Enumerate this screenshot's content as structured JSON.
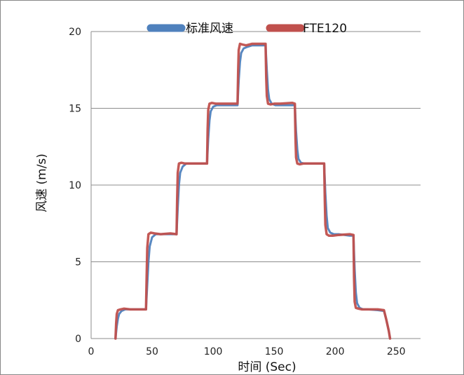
{
  "chart_data": {
    "type": "line",
    "xlabel": "时间 (Sec)",
    "ylabel": "风速 (m/s)",
    "xlim": [
      0,
      270
    ],
    "ylim": [
      0,
      20
    ],
    "xticks": [
      0,
      50,
      100,
      150,
      200,
      250
    ],
    "yticks": [
      0,
      5,
      10,
      15,
      20
    ],
    "grid": "horizontal",
    "legend_position": "top",
    "series": [
      {
        "name": "标准风速",
        "color": "#4F81BD",
        "x": [
          20,
          21,
          22,
          23,
          25,
          28,
          32,
          40,
          45,
          46,
          47,
          48,
          50,
          53,
          57,
          65,
          70,
          71,
          72,
          73,
          75,
          78,
          82,
          90,
          95,
          96,
          97,
          98,
          100,
          103,
          107,
          115,
          120,
          121,
          122,
          123,
          125,
          128,
          132,
          140,
          143,
          144,
          145,
          146,
          148,
          151,
          155,
          165,
          167,
          168,
          169,
          170,
          172,
          175,
          179,
          189,
          191,
          192,
          193,
          194,
          196,
          199,
          203,
          212,
          215,
          216,
          217,
          218,
          220,
          223,
          227,
          235,
          240,
          242,
          244,
          245
        ],
        "y": [
          0,
          0.8,
          1.3,
          1.6,
          1.8,
          1.9,
          1.9,
          1.9,
          1.9,
          3.5,
          5.0,
          6.0,
          6.6,
          6.8,
          6.8,
          6.8,
          6.8,
          8.5,
          10.0,
          10.8,
          11.2,
          11.4,
          11.4,
          11.4,
          11.4,
          13.0,
          14.2,
          14.8,
          15.1,
          15.2,
          15.2,
          15.2,
          15.2,
          16.8,
          18.0,
          18.6,
          18.9,
          19.0,
          19.1,
          19.1,
          19.1,
          17.5,
          16.2,
          15.6,
          15.3,
          15.2,
          15.2,
          15.2,
          15.2,
          13.5,
          12.3,
          11.7,
          11.45,
          11.4,
          11.4,
          11.4,
          11.4,
          9.5,
          8.0,
          7.2,
          6.9,
          6.8,
          6.8,
          6.7,
          6.7,
          4.5,
          3.0,
          2.3,
          2.0,
          1.9,
          1.9,
          1.85,
          1.8,
          1.2,
          0.5,
          0
        ]
      },
      {
        "name": "FTE120",
        "color": "#C0504D",
        "x": [
          20,
          20.5,
          21,
          22,
          24,
          27,
          32,
          40,
          45,
          45.5,
          46,
          47,
          49,
          52,
          57,
          65,
          70,
          70.5,
          71,
          72,
          74,
          77,
          82,
          90,
          95,
          95.5,
          96,
          97,
          99,
          102,
          107,
          115,
          120,
          120.5,
          121,
          122,
          124,
          127,
          132,
          140,
          143,
          143.5,
          144,
          145,
          147,
          150,
          155,
          165,
          167,
          167.5,
          168,
          169,
          171,
          174,
          179,
          189,
          191,
          191.5,
          192,
          193,
          195,
          198,
          203,
          212,
          215,
          215.5,
          216,
          217,
          219,
          222,
          227,
          235,
          240,
          242,
          244,
          245
        ],
        "y": [
          0,
          1.0,
          1.6,
          1.85,
          1.9,
          1.95,
          1.9,
          1.9,
          1.9,
          4.0,
          5.9,
          6.8,
          6.9,
          6.85,
          6.8,
          6.85,
          6.8,
          9.0,
          10.8,
          11.4,
          11.45,
          11.4,
          11.4,
          11.4,
          11.4,
          13.6,
          14.9,
          15.3,
          15.35,
          15.3,
          15.3,
          15.3,
          15.3,
          17.5,
          18.8,
          19.2,
          19.15,
          19.1,
          19.2,
          19.2,
          19.2,
          17.0,
          15.8,
          15.3,
          15.25,
          15.3,
          15.3,
          15.35,
          15.3,
          13.0,
          11.8,
          11.4,
          11.35,
          11.4,
          11.4,
          11.4,
          11.4,
          9.0,
          7.4,
          6.8,
          6.7,
          6.7,
          6.75,
          6.8,
          6.75,
          4.0,
          2.4,
          2.0,
          1.95,
          1.9,
          1.9,
          1.9,
          1.85,
          1.2,
          0.5,
          0
        ]
      }
    ]
  }
}
